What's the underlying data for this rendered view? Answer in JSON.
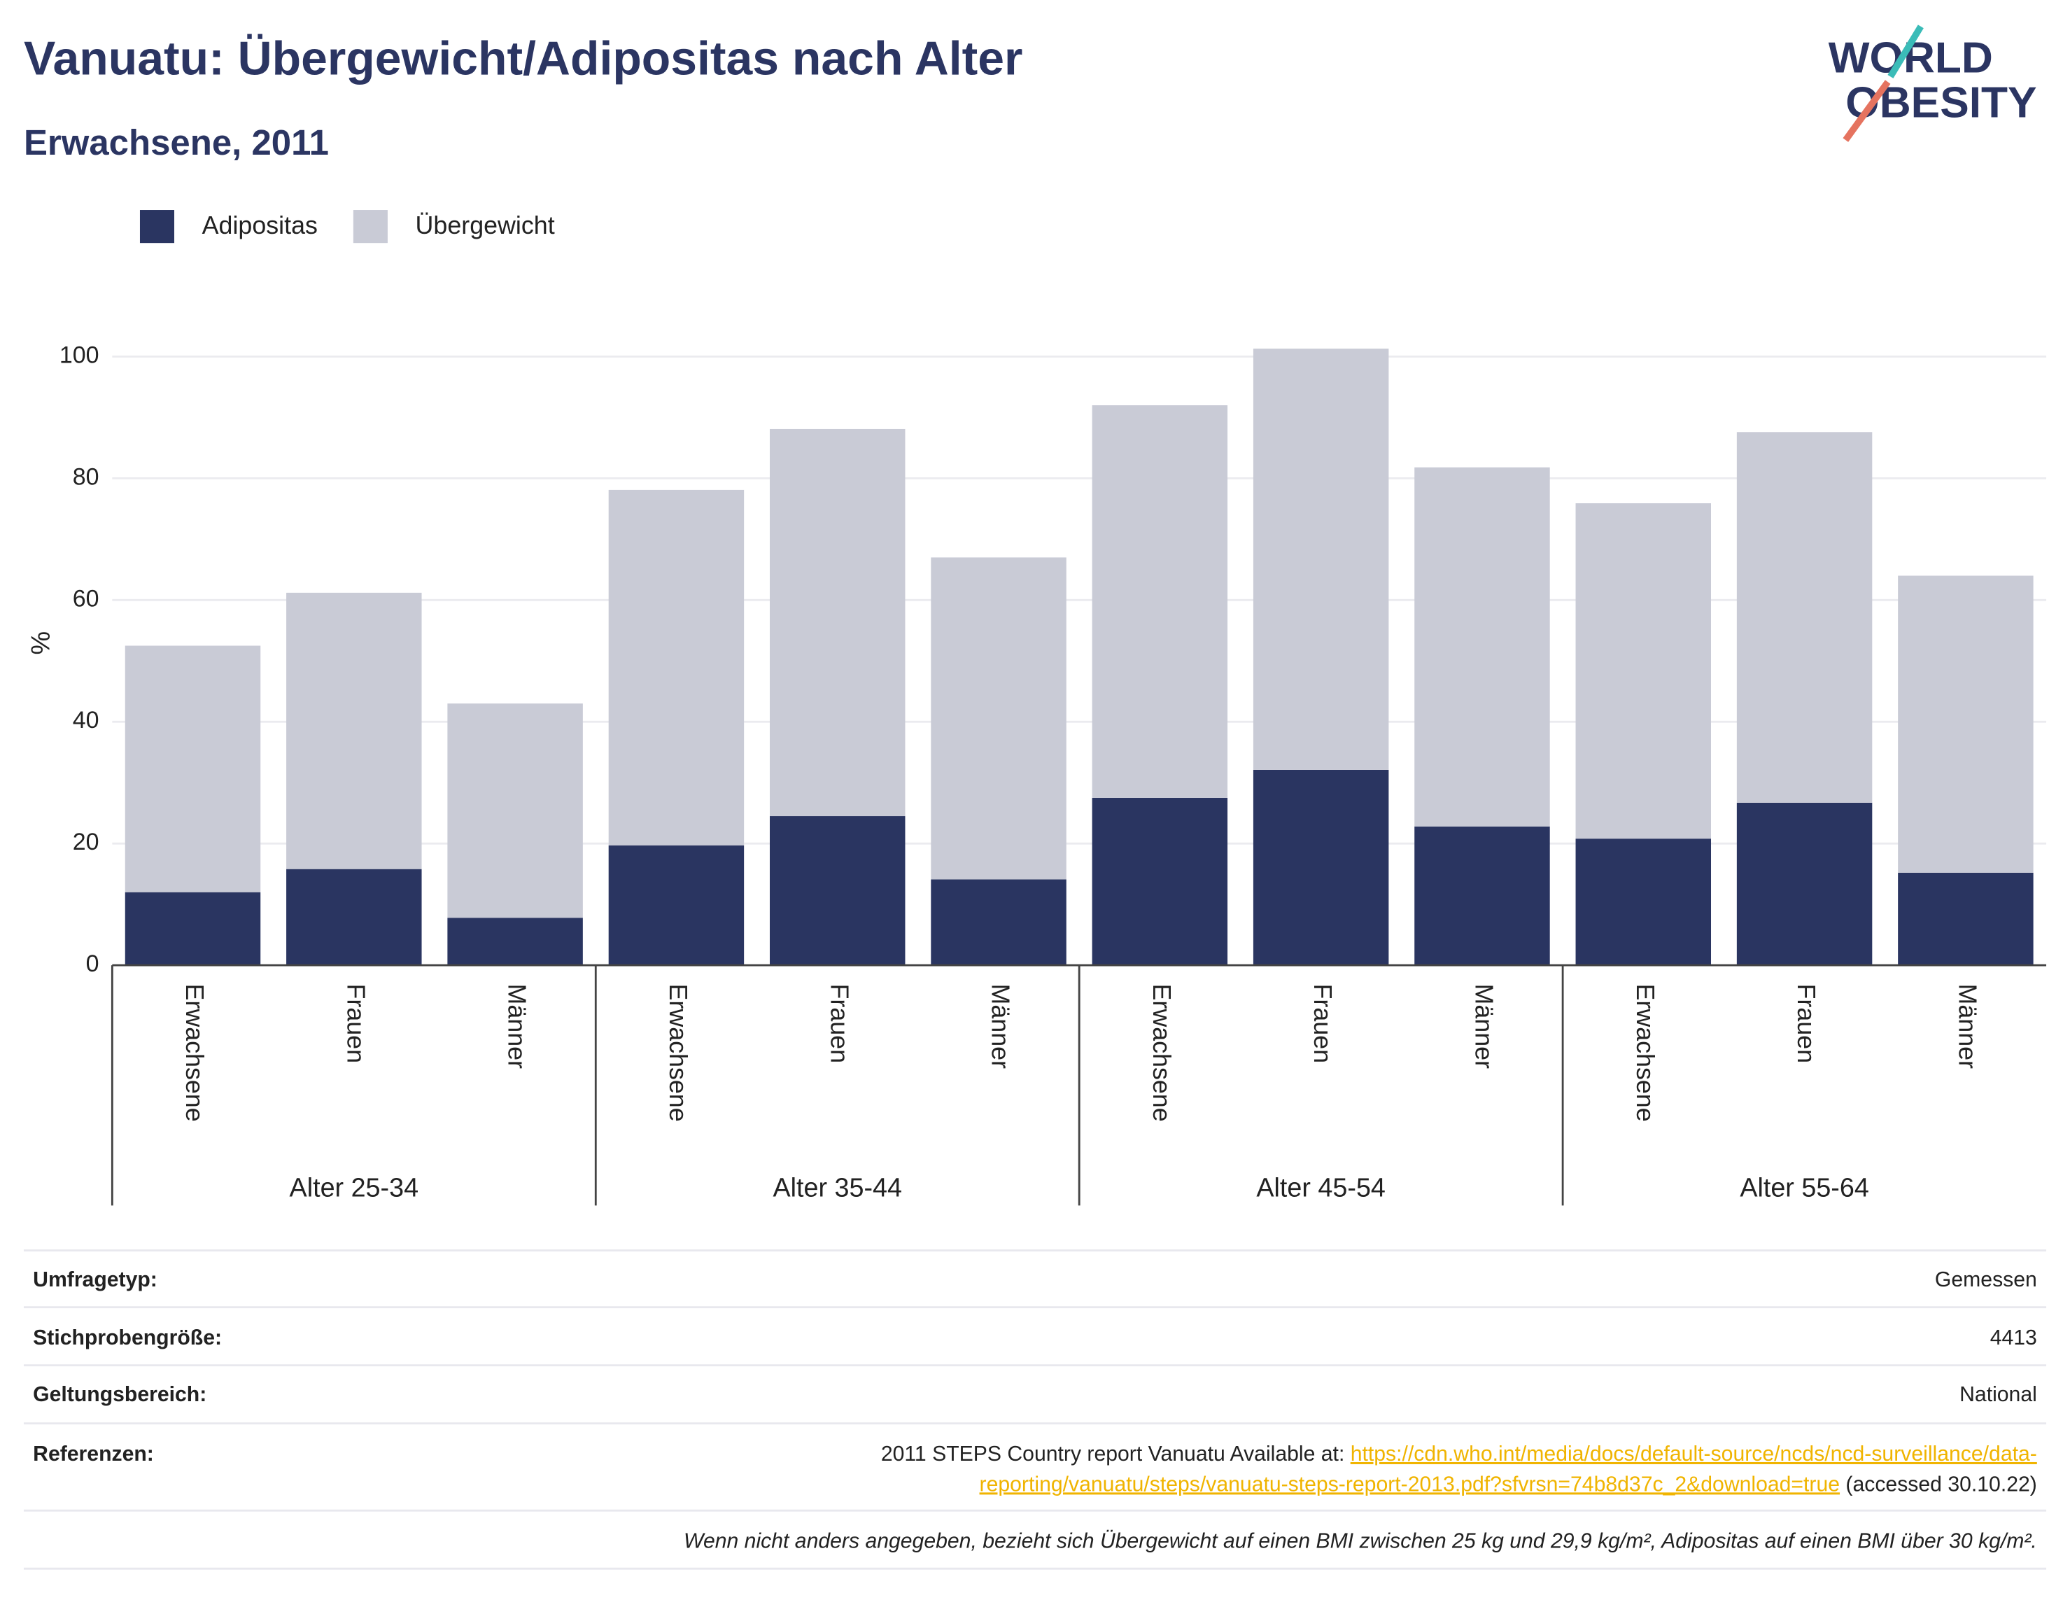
{
  "chart_data": {
    "type": "stacked_bar",
    "title": "Vanuatu: Übergewicht/Adipositas nach Alter",
    "subtitle": "Erwachsene, 2011",
    "logo": [
      "WORLD",
      "OBESITY"
    ],
    "y_label": "%",
    "groups": [
      {
        "name": "Alter 25-34",
        "categories": [
          "Erwachsene",
          "Frauen",
          "Männer"
        ]
      },
      {
        "name": "Alter 35-44",
        "categories": [
          "Erwachsene",
          "Frauen",
          "Männer"
        ]
      },
      {
        "name": "Alter 45-54",
        "categories": [
          "Erwachsene",
          "Frauen",
          "Männer"
        ]
      },
      {
        "name": "Alter 55-64",
        "categories": [
          "Erwachsene",
          "Frauen",
          "Männer"
        ]
      }
    ],
    "series": [
      {
        "name": "Adipositas",
        "color": "#2a3561",
        "values": [
          12,
          15.8,
          7.8,
          19.7,
          24.5,
          14.1,
          27.5,
          32.1,
          22.8,
          20.8,
          26.7,
          15.2
        ]
      },
      {
        "name": "Übergewicht",
        "color": "#c9cbd6",
        "values": [
          40.5,
          45.4,
          35.2,
          58.4,
          63.6,
          52.9,
          64.5,
          69.2,
          59,
          55.1,
          60.9,
          48.8
        ]
      }
    ],
    "ylim": [
      0,
      102
    ],
    "yticks": [
      0,
      20,
      40,
      60,
      80,
      100
    ],
    "grid": true,
    "legend": "top-left"
  },
  "info_table": {
    "rows": [
      {
        "label": "Umfragetyp:",
        "value": "Gemessen"
      },
      {
        "label": "Stichprobengröße:",
        "value": "4413"
      },
      {
        "label": "Geltungsbereich:",
        "value": "National"
      }
    ],
    "reference": {
      "label": "Referenzen:",
      "prefix": "2011 STEPS Country report Vanuatu Available at: ",
      "link": [
        "https://cdn.who.int/media/docs/default-source/ncds/ncd-surveillance/data-",
        "reporting/vanuatu/steps/vanuatu-steps-report-2013.pdf?sfvrsn=74b8d37c_2&download=true"
      ],
      "suffix": " (accessed 30.10.22)"
    },
    "footnote": "Wenn nicht anders angegeben, bezieht sich Übergewicht auf einen BMI zwischen 25 kg und 29,9 kg/m², Adipositas auf einen BMI über 30 kg/m²."
  }
}
